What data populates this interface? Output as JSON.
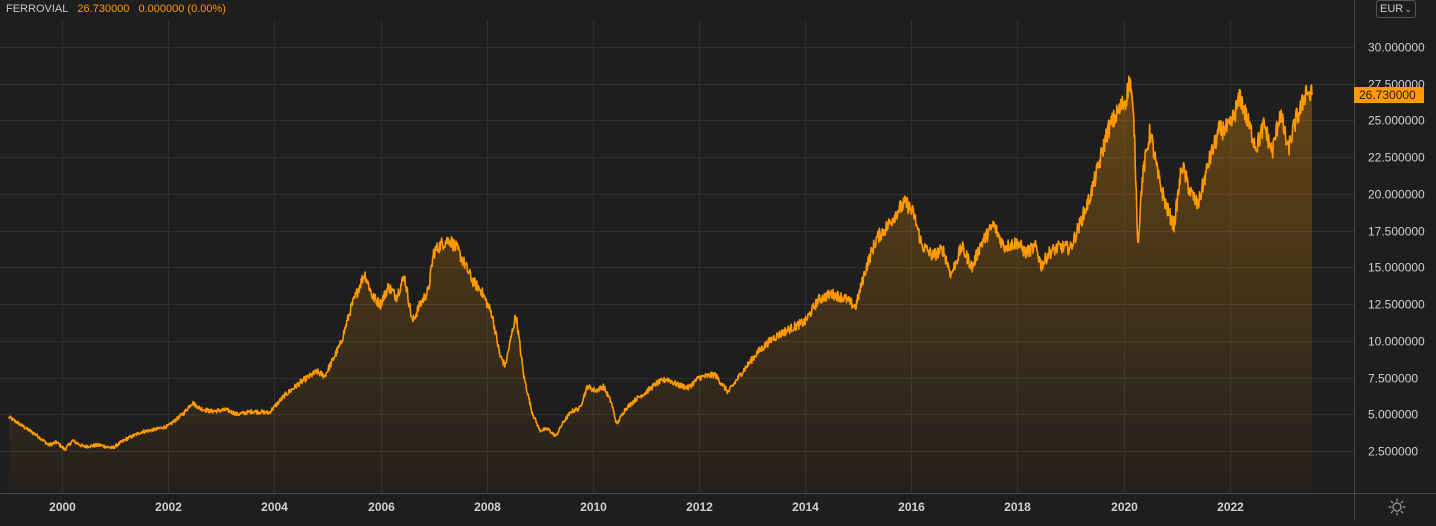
{
  "header": {
    "symbol": "FERROVIAL",
    "last": "26.730000",
    "change": "0.000000 (0.00%)"
  },
  "currency": {
    "selected": "EUR"
  },
  "icons": {
    "currency_dropdown": "chevron-down-icon",
    "settings": "settings-sun-icon"
  },
  "colors": {
    "background": "#1e1e1e",
    "line": "#ff9900",
    "grid": "#2f2f2f",
    "axis_text": "#d0d0d0",
    "price_tag_bg": "#ff9900"
  },
  "chart_data": {
    "type": "area",
    "title": "",
    "series": [
      {
        "name": "FERROVIAL",
        "points": [
          [
            1999.0,
            4.8
          ],
          [
            1999.3,
            4.1
          ],
          [
            1999.55,
            3.5
          ],
          [
            1999.75,
            2.9
          ],
          [
            1999.9,
            3.1
          ],
          [
            2000.05,
            2.6
          ],
          [
            2000.2,
            3.2
          ],
          [
            2000.4,
            2.8
          ],
          [
            2000.7,
            2.9
          ],
          [
            2000.95,
            2.7
          ],
          [
            2001.2,
            3.3
          ],
          [
            2001.5,
            3.8
          ],
          [
            2001.8,
            4.0
          ],
          [
            2002.0,
            4.2
          ],
          [
            2002.3,
            5.1
          ],
          [
            2002.45,
            5.8
          ],
          [
            2002.6,
            5.4
          ],
          [
            2002.8,
            5.2
          ],
          [
            2003.1,
            5.3
          ],
          [
            2003.3,
            5.0
          ],
          [
            2003.6,
            5.2
          ],
          [
            2003.9,
            5.1
          ],
          [
            2004.0,
            5.5
          ],
          [
            2004.2,
            6.3
          ],
          [
            2004.5,
            7.2
          ],
          [
            2004.8,
            7.9
          ],
          [
            2004.95,
            7.6
          ],
          [
            2005.1,
            8.7
          ],
          [
            2005.25,
            9.8
          ],
          [
            2005.45,
            12.3
          ],
          [
            2005.7,
            14.6
          ],
          [
            2005.85,
            13.0
          ],
          [
            2006.0,
            12.5
          ],
          [
            2006.15,
            13.7
          ],
          [
            2006.3,
            13.0
          ],
          [
            2006.45,
            14.4
          ],
          [
            2006.6,
            11.3
          ],
          [
            2006.75,
            12.5
          ],
          [
            2006.9,
            13.4
          ],
          [
            2007.0,
            16.0
          ],
          [
            2007.15,
            16.6
          ],
          [
            2007.3,
            16.9
          ],
          [
            2007.45,
            16.2
          ],
          [
            2007.6,
            15.1
          ],
          [
            2007.75,
            14.0
          ],
          [
            2007.9,
            13.4
          ],
          [
            2008.1,
            11.8
          ],
          [
            2008.25,
            9.0
          ],
          [
            2008.35,
            8.3
          ],
          [
            2008.55,
            11.8
          ],
          [
            2008.7,
            7.6
          ],
          [
            2008.85,
            5.2
          ],
          [
            2009.0,
            3.9
          ],
          [
            2009.15,
            4.0
          ],
          [
            2009.3,
            3.5
          ],
          [
            2009.45,
            4.5
          ],
          [
            2009.6,
            5.2
          ],
          [
            2009.75,
            5.4
          ],
          [
            2009.9,
            6.9
          ],
          [
            2010.05,
            6.6
          ],
          [
            2010.2,
            6.9
          ],
          [
            2010.35,
            5.8
          ],
          [
            2010.45,
            4.3
          ],
          [
            2010.6,
            5.3
          ],
          [
            2010.8,
            6.0
          ],
          [
            2011.0,
            6.5
          ],
          [
            2011.2,
            7.1
          ],
          [
            2011.4,
            7.4
          ],
          [
            2011.6,
            7.0
          ],
          [
            2011.8,
            6.8
          ],
          [
            2012.0,
            7.5
          ],
          [
            2012.3,
            7.7
          ],
          [
            2012.55,
            6.5
          ],
          [
            2012.8,
            7.8
          ],
          [
            2013.1,
            9.2
          ],
          [
            2013.4,
            10.2
          ],
          [
            2013.7,
            10.8
          ],
          [
            2014.0,
            11.3
          ],
          [
            2014.25,
            12.8
          ],
          [
            2014.5,
            13.2
          ],
          [
            2014.75,
            12.9
          ],
          [
            2014.95,
            12.3
          ],
          [
            2015.15,
            15.0
          ],
          [
            2015.35,
            17.0
          ],
          [
            2015.55,
            17.8
          ],
          [
            2015.75,
            18.9
          ],
          [
            2015.9,
            19.4
          ],
          [
            2016.05,
            18.6
          ],
          [
            2016.2,
            16.5
          ],
          [
            2016.4,
            15.8
          ],
          [
            2016.6,
            16.2
          ],
          [
            2016.75,
            14.5
          ],
          [
            2016.95,
            16.4
          ],
          [
            2017.15,
            15.0
          ],
          [
            2017.3,
            16.5
          ],
          [
            2017.55,
            17.9
          ],
          [
            2017.75,
            16.4
          ],
          [
            2018.0,
            16.7
          ],
          [
            2018.15,
            16.0
          ],
          [
            2018.35,
            16.4
          ],
          [
            2018.45,
            15.1
          ],
          [
            2018.6,
            16.0
          ],
          [
            2018.8,
            16.4
          ],
          [
            2019.0,
            16.3
          ],
          [
            2019.15,
            17.7
          ],
          [
            2019.35,
            19.6
          ],
          [
            2019.5,
            21.5
          ],
          [
            2019.7,
            24.3
          ],
          [
            2019.9,
            25.6
          ],
          [
            2020.05,
            26.5
          ],
          [
            2020.12,
            27.9
          ],
          [
            2020.2,
            24.5
          ],
          [
            2020.27,
            16.5
          ],
          [
            2020.35,
            21.0
          ],
          [
            2020.5,
            24.3
          ],
          [
            2020.65,
            21.2
          ],
          [
            2020.8,
            19.2
          ],
          [
            2020.95,
            17.8
          ],
          [
            2021.1,
            22.0
          ],
          [
            2021.25,
            20.2
          ],
          [
            2021.4,
            19.2
          ],
          [
            2021.6,
            22.1
          ],
          [
            2021.8,
            24.3
          ],
          [
            2022.0,
            24.5
          ],
          [
            2022.2,
            26.6
          ],
          [
            2022.35,
            24.8
          ],
          [
            2022.5,
            23.2
          ],
          [
            2022.65,
            24.7
          ],
          [
            2022.8,
            22.8
          ],
          [
            2022.95,
            25.6
          ],
          [
            2023.1,
            23.0
          ],
          [
            2023.25,
            25.1
          ],
          [
            2023.35,
            25.9
          ],
          [
            2023.45,
            27.2
          ],
          [
            2023.5,
            26.7
          ],
          [
            2023.55,
            26.73
          ]
        ]
      }
    ],
    "x_ticks": [
      "2000",
      "2002",
      "2004",
      "2006",
      "2008",
      "2010",
      "2012",
      "2014",
      "2016",
      "2018",
      "2020",
      "2022"
    ],
    "y_ticks": [
      "2.500000",
      "5.000000",
      "7.500000",
      "10.000000",
      "12.500000",
      "15.000000",
      "17.500000",
      "20.000000",
      "22.500000",
      "25.000000",
      "27.500000",
      "30.000000"
    ],
    "xlim": [
      1999.0,
      2024.0
    ],
    "ylim": [
      0.5,
      31.8
    ],
    "last_price_label": "26.730000",
    "grid": true,
    "y_axis_side": "right",
    "fill": "gradient"
  }
}
